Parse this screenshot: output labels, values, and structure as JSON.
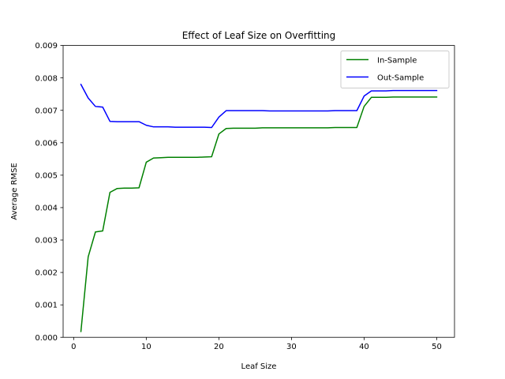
{
  "chart_data": {
    "type": "line",
    "title": "Effect of Leaf Size on Overfitting",
    "xlabel": "Leaf Size",
    "ylabel": "Average RMSE",
    "xlim": [
      -1.45,
      52.45
    ],
    "ylim": [
      0.0,
      0.009
    ],
    "xticks": [
      0,
      10,
      20,
      30,
      40,
      50
    ],
    "xtick_labels": [
      "0",
      "10",
      "20",
      "30",
      "40",
      "50"
    ],
    "yticks": [
      0.0,
      0.001,
      0.002,
      0.003,
      0.004,
      0.005,
      0.006,
      0.007,
      0.008,
      0.009
    ],
    "ytick_labels": [
      "0.000",
      "0.001",
      "0.002",
      "0.003",
      "0.004",
      "0.005",
      "0.006",
      "0.007",
      "0.008",
      "0.009"
    ],
    "grid": false,
    "legend_position": "top-right",
    "x": [
      1,
      2,
      3,
      4,
      5,
      6,
      7,
      8,
      9,
      10,
      11,
      12,
      13,
      14,
      15,
      16,
      17,
      18,
      19,
      20,
      21,
      22,
      23,
      24,
      25,
      26,
      27,
      28,
      29,
      30,
      31,
      32,
      33,
      34,
      35,
      36,
      37,
      38,
      39,
      40,
      41,
      42,
      43,
      44,
      45,
      46,
      47,
      48,
      49,
      50
    ],
    "series": [
      {
        "name": "In-Sample",
        "color": "#008000",
        "values": [
          0.00018,
          0.00248,
          0.00325,
          0.00328,
          0.00447,
          0.00459,
          0.0046,
          0.0046,
          0.00461,
          0.0054,
          0.00553,
          0.00554,
          0.00555,
          0.00555,
          0.00555,
          0.00555,
          0.00555,
          0.00556,
          0.00557,
          0.00627,
          0.00644,
          0.00645,
          0.00645,
          0.00645,
          0.00645,
          0.00646,
          0.00646,
          0.00646,
          0.00646,
          0.00646,
          0.00646,
          0.00646,
          0.00646,
          0.00646,
          0.00646,
          0.00647,
          0.00647,
          0.00647,
          0.00647,
          0.00712,
          0.0074,
          0.0074,
          0.0074,
          0.00741,
          0.00741,
          0.00741,
          0.00741,
          0.00741,
          0.00741,
          0.00741
        ]
      },
      {
        "name": "Out-Sample",
        "color": "#0000ff",
        "values": [
          0.0078,
          0.00738,
          0.00712,
          0.0071,
          0.00666,
          0.00665,
          0.00665,
          0.00665,
          0.00665,
          0.00654,
          0.00649,
          0.00649,
          0.00649,
          0.00648,
          0.00648,
          0.00648,
          0.00648,
          0.00648,
          0.00647,
          0.00679,
          0.00699,
          0.00699,
          0.00699,
          0.00699,
          0.00699,
          0.00699,
          0.00698,
          0.00698,
          0.00698,
          0.00698,
          0.00698,
          0.00698,
          0.00698,
          0.00698,
          0.00698,
          0.00699,
          0.00699,
          0.00699,
          0.00699,
          0.00744,
          0.0076,
          0.0076,
          0.0076,
          0.00761,
          0.00761,
          0.00761,
          0.00761,
          0.00761,
          0.00761,
          0.00761
        ]
      }
    ]
  }
}
